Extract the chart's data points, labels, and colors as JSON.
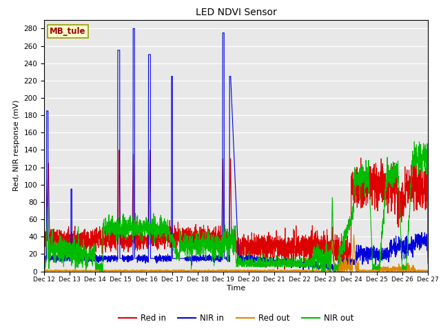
{
  "title": "LED NDVI Sensor",
  "xlabel": "Time",
  "ylabel": "Red, NIR response (mV)",
  "ylim": [
    0,
    290
  ],
  "yticks": [
    0,
    20,
    40,
    60,
    80,
    100,
    120,
    140,
    160,
    180,
    200,
    220,
    240,
    260,
    280
  ],
  "xtick_labels": [
    "Dec 12",
    "Dec 13",
    "Dec 14",
    "Dec 15",
    "Dec 16",
    "Dec 17",
    "Dec 18",
    "Dec 19",
    "Dec 20",
    "Dec 21",
    "Dec 22",
    "Dec 23",
    "Dec 24",
    "Dec 25",
    "Dec 26",
    "Dec 27"
  ],
  "legend_labels": [
    "Red in",
    "NIR in",
    "Red out",
    "NIR out"
  ],
  "legend_colors": [
    "#dd0000",
    "#0000dd",
    "#dd8800",
    "#00bb00"
  ],
  "annotation_text": "MB_tule",
  "background_color": "#e8e8e8",
  "line_width": 0.8,
  "red_in_color": "#dd0000",
  "nir_in_color": "#0000dd",
  "red_out_color": "#dd8800",
  "nir_out_color": "#00bb00"
}
